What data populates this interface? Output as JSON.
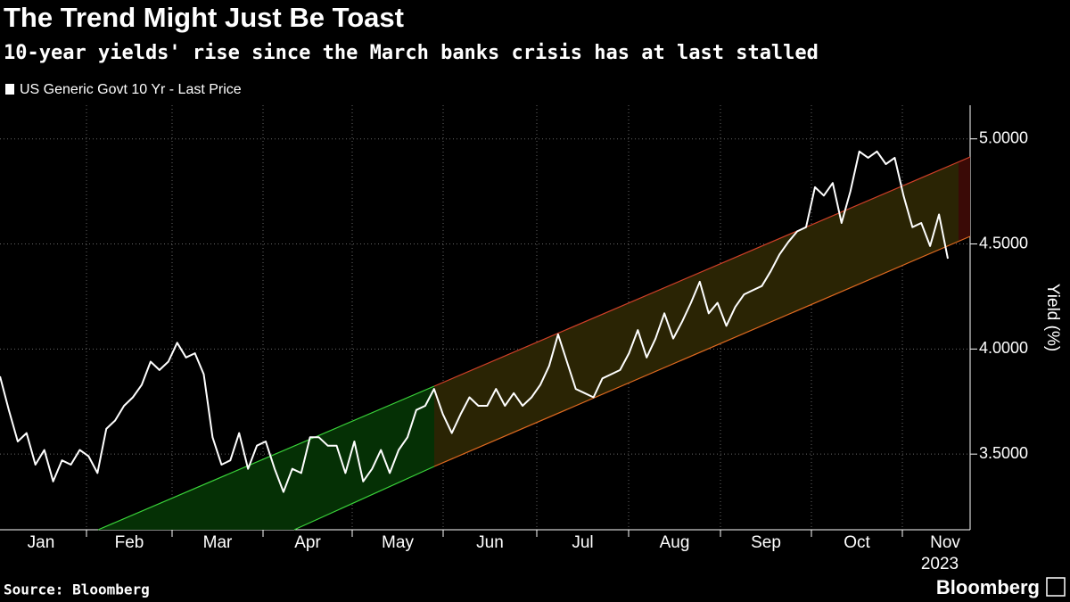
{
  "chart_data": {
    "type": "line",
    "title": "The Trend Might Just Be Toast",
    "subtitle": "10-year yields' rise since the March banks crisis has at last stalled",
    "source": "Source: Bloomberg",
    "brand": "Bloomberg",
    "y_label": "Yield (%)",
    "x_label": "2023",
    "xticks": [
      "Jan",
      "Feb",
      "Mar",
      "Apr",
      "May",
      "Jun",
      "Jul",
      "Aug",
      "Sep",
      "Oct",
      "Nov"
    ],
    "ylim": [
      3.14,
      5.16
    ],
    "yticks": [
      {
        "value": 3.5,
        "label": "3.5000"
      },
      {
        "value": 4,
        "label": "4.0000"
      },
      {
        "value": 4.5,
        "label": "4.5000"
      },
      {
        "value": 5,
        "label": "5.0000"
      }
    ],
    "grid": true,
    "series": [
      {
        "name": "US Generic Govt 10 Yr - Last Price",
        "color": "#ffffff",
        "values": [
          3.87,
          3.71,
          3.56,
          3.6,
          3.45,
          3.52,
          3.37,
          3.47,
          3.45,
          3.52,
          3.49,
          3.41,
          3.62,
          3.66,
          3.73,
          3.77,
          3.83,
          3.94,
          3.9,
          3.94,
          4.03,
          3.96,
          3.98,
          3.88,
          3.58,
          3.45,
          3.47,
          3.6,
          3.43,
          3.54,
          3.56,
          3.43,
          3.32,
          3.43,
          3.41,
          3.58,
          3.58,
          3.54,
          3.54,
          3.41,
          3.56,
          3.37,
          3.43,
          3.52,
          3.41,
          3.52,
          3.58,
          3.71,
          3.73,
          3.81,
          3.69,
          3.6,
          3.69,
          3.77,
          3.73,
          3.73,
          3.81,
          3.73,
          3.79,
          3.73,
          3.77,
          3.83,
          3.92,
          4.07,
          3.94,
          3.81,
          3.79,
          3.77,
          3.86,
          3.88,
          3.9,
          3.98,
          4.09,
          3.96,
          4.05,
          4.17,
          4.05,
          4.13,
          4.22,
          4.32,
          4.17,
          4.22,
          4.11,
          4.2,
          4.26,
          4.28,
          4.3,
          4.37,
          4.45,
          4.51,
          4.56,
          4.58,
          4.77,
          4.73,
          4.79,
          4.6,
          4.75,
          4.94,
          4.91,
          4.94,
          4.88,
          4.91,
          4.73,
          4.58,
          4.6,
          4.49,
          4.64,
          4.43
        ]
      }
    ]
  }
}
